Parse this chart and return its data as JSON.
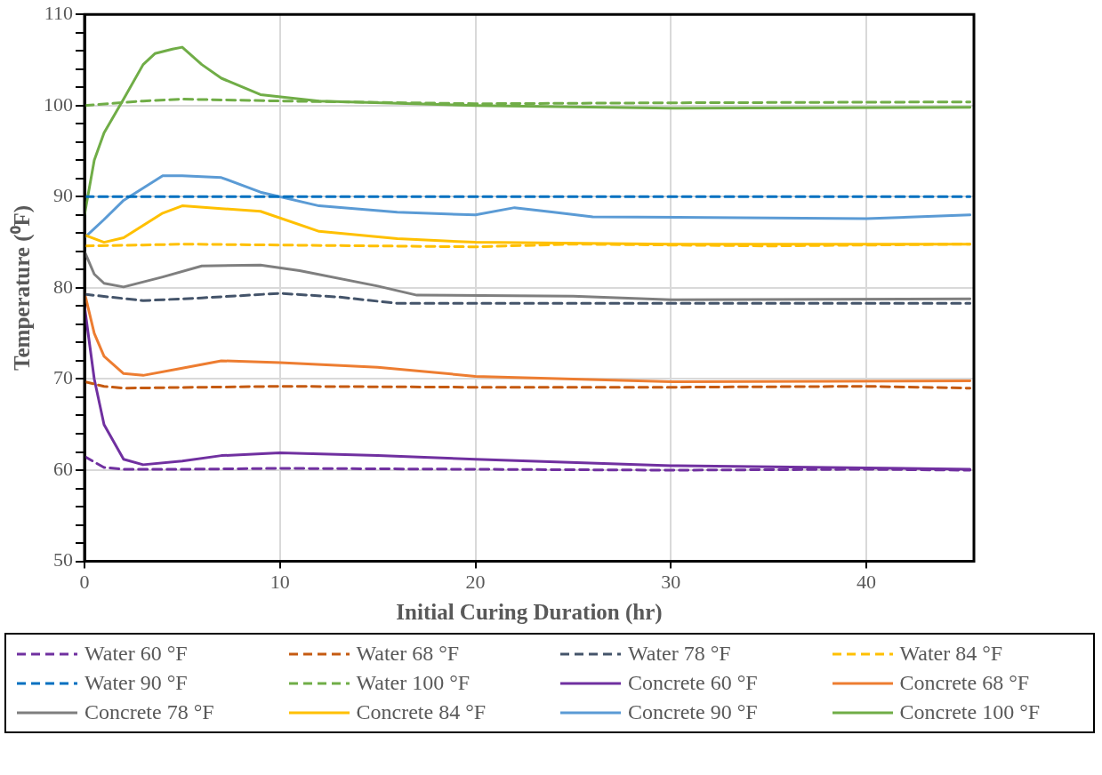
{
  "chart_data": {
    "type": "line",
    "xlabel": "Initial Curing Duration (hr)",
    "ylabel": "Temperature (⁰F)",
    "xlim": [
      0,
      45.5
    ],
    "xticks": [
      0,
      10,
      20,
      30,
      40
    ],
    "ylim": [
      50,
      110
    ],
    "yticks": [
      50,
      {
        "value": 52,
        "label": null
      },
      {
        "value": 54,
        "label": null
      },
      {
        "value": 56,
        "label": null
      },
      {
        "value": 58,
        "label": null
      },
      60,
      {
        "value": 62,
        "label": null
      },
      {
        "value": 64,
        "label": null
      },
      {
        "value": 66,
        "label": null
      },
      {
        "value": 68,
        "label": null
      },
      70,
      {
        "value": 72,
        "label": null
      },
      {
        "value": 74,
        "label": null
      },
      {
        "value": 76,
        "label": null
      },
      {
        "value": 78,
        "label": null
      },
      80,
      {
        "value": 82,
        "label": null
      },
      {
        "value": 84,
        "label": null
      },
      {
        "value": 86,
        "label": null
      },
      {
        "value": 88,
        "label": null
      },
      90,
      {
        "value": 92,
        "label": null
      },
      {
        "value": 94,
        "label": null
      },
      {
        "value": 96,
        "label": null
      },
      {
        "value": 98,
        "label": null
      },
      100,
      {
        "value": 102,
        "label": null
      },
      {
        "value": 104,
        "label": null
      },
      {
        "value": 106,
        "label": null
      },
      {
        "value": 108,
        "label": null
      },
      110
    ],
    "grid": true,
    "legend": "bottom",
    "marker": "none",
    "series": [
      {
        "name": "Water 60 °F",
        "color": "#7030a0",
        "line_style": "dashed",
        "x": [
          0,
          1,
          2,
          5,
          10,
          20,
          30,
          40,
          45.3
        ],
        "values": [
          61.5,
          60.3,
          60.1,
          60.1,
          60.2,
          60.1,
          60.0,
          60.1,
          60.0
        ]
      },
      {
        "name": "Water 68 °F",
        "color": "#c55a11",
        "line_style": "dashed",
        "x": [
          0,
          1,
          2,
          10,
          20,
          30,
          40,
          45.3
        ],
        "values": [
          69.7,
          69.2,
          69.0,
          69.2,
          69.1,
          69.1,
          69.2,
          69.0
        ]
      },
      {
        "name": "Water 78 °F",
        "color": "#44546a",
        "line_style": "dashed",
        "x": [
          0,
          3,
          6,
          10,
          13,
          16,
          25,
          45.3
        ],
        "values": [
          79.3,
          78.6,
          78.9,
          79.4,
          79.0,
          78.3,
          78.3,
          78.3
        ]
      },
      {
        "name": "Water 84 °F",
        "color": "#ffc000",
        "line_style": "dashed",
        "x": [
          0,
          3,
          5,
          10,
          20,
          25,
          35,
          45.3
        ],
        "values": [
          84.6,
          84.7,
          84.8,
          84.7,
          84.5,
          84.8,
          84.6,
          84.8
        ]
      },
      {
        "name": "Water 90 °F",
        "color": "#0070c0",
        "line_style": "dashed",
        "x": [
          0,
          10,
          20,
          30,
          40,
          45.3
        ],
        "values": [
          90,
          90,
          90,
          90,
          90,
          90
        ]
      },
      {
        "name": "Water 100 °F",
        "color": "#70ad47",
        "line_style": "dashed",
        "x": [
          0,
          3,
          5,
          10,
          20,
          30,
          45.3
        ],
        "values": [
          100.0,
          100.5,
          100.7,
          100.5,
          100.2,
          100.3,
          100.4
        ]
      },
      {
        "name": "Concrete 60 °F",
        "color": "#7030a0",
        "line_style": "solid",
        "x": [
          0,
          0.5,
          1,
          2,
          3,
          5,
          7,
          10,
          15,
          20,
          30,
          45.3
        ],
        "values": [
          78,
          70,
          65,
          61.2,
          60.6,
          61,
          61.6,
          61.9,
          61.6,
          61.2,
          60.5,
          60.1
        ]
      },
      {
        "name": "Concrete 68 °F",
        "color": "#ed7d31",
        "line_style": "solid",
        "x": [
          0,
          0.5,
          1,
          2,
          3,
          5,
          7,
          10,
          15,
          20,
          25,
          30,
          45.3
        ],
        "values": [
          79.5,
          75,
          72.5,
          70.6,
          70.4,
          71.2,
          72,
          71.8,
          71.3,
          70.3,
          70,
          69.7,
          69.8
        ]
      },
      {
        "name": "Concrete 78 °F",
        "color": "#7f7f7f",
        "line_style": "solid",
        "x": [
          0,
          0.5,
          1,
          2,
          4,
          6,
          9,
          11,
          15,
          17,
          25,
          30,
          45.3
        ],
        "values": [
          84,
          81.5,
          80.5,
          80.1,
          81.2,
          82.4,
          82.5,
          81.9,
          80.2,
          79.2,
          79.1,
          78.7,
          78.8
        ]
      },
      {
        "name": "Concrete 84 °F",
        "color": "#ffc000",
        "line_style": "solid",
        "x": [
          0,
          1,
          2,
          4,
          5,
          7,
          9,
          12,
          16,
          20,
          30,
          45.3
        ],
        "values": [
          85.8,
          85,
          85.5,
          88.2,
          89,
          88.7,
          88.4,
          86.2,
          85.4,
          85,
          84.8,
          84.8
        ]
      },
      {
        "name": "Concrete 90 °F",
        "color": "#5b9bd5",
        "line_style": "solid",
        "x": [
          0,
          1,
          2,
          4,
          5,
          7,
          9,
          12,
          16,
          20,
          22,
          24,
          26,
          40,
          45.3
        ],
        "values": [
          85.5,
          87.5,
          89.6,
          92.3,
          92.3,
          92.1,
          90.5,
          89,
          88.3,
          88,
          88.8,
          88.3,
          87.8,
          87.6,
          88
        ]
      },
      {
        "name": "Concrete 100 °F",
        "color": "#70ad47",
        "line_style": "solid",
        "x": [
          0,
          0.5,
          1,
          2,
          3,
          3.6,
          4.5,
          5,
          6,
          7,
          9,
          12,
          20,
          30,
          45.3
        ],
        "values": [
          88,
          94,
          97,
          100.7,
          104.5,
          105.7,
          106.2,
          106.4,
          104.5,
          103,
          101.2,
          100.5,
          100,
          99.7,
          99.8
        ]
      }
    ]
  }
}
